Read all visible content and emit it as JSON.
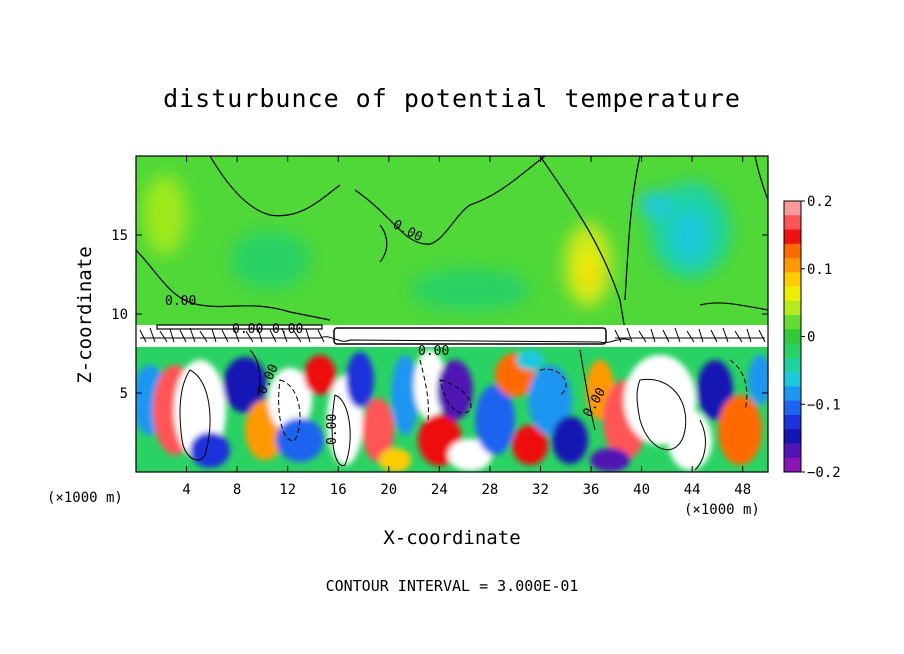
{
  "chart_data": {
    "type": "heatmap",
    "title": "disturbunce of potential temperature",
    "xlabel": "X-coordinate",
    "ylabel": "Z-coordinate",
    "x_unit": "(×1000 m)",
    "y_ticks": [
      5,
      10,
      15
    ],
    "x_ticks": [
      4,
      8,
      12,
      16,
      20,
      24,
      28,
      32,
      36,
      40,
      44,
      48
    ],
    "xlim": [
      0,
      50
    ],
    "ylim": [
      0,
      20
    ],
    "colorbar": {
      "range": [
        -0.2,
        0.2
      ],
      "tick_labels": [
        "0.2",
        "0.1",
        "0",
        "−0.1",
        "−0.2"
      ],
      "tick_values": [
        0.2,
        0.1,
        0,
        -0.1,
        -0.2
      ],
      "colors": [
        "#fa9a9a",
        "#ff5555",
        "#ee1111",
        "#ff6a00",
        "#ff9900",
        "#ffcc00",
        "#eeee00",
        "#b4ec1e",
        "#64dc32",
        "#36c83c",
        "#2ad264",
        "#1ed2a0",
        "#1ec8dc",
        "#1e96f0",
        "#1e64f0",
        "#1e32dc",
        "#1414b4",
        "#5014b4",
        "#8c14b4"
      ]
    },
    "contour_labels": [
      "0.00",
      "0.00",
      "0.00",
      "0.00",
      "0.00",
      "0.00",
      "0.00",
      "0.00"
    ],
    "contour_interval": "CONTOUR INTERVAL = 3.000E-01",
    "grid": false
  }
}
